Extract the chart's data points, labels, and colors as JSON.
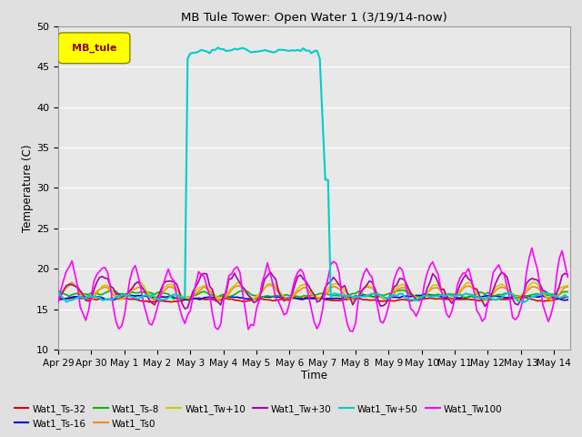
{
  "title": "MB Tule Tower: Open Water 1 (3/19/14-now)",
  "xlabel": "Time",
  "ylabel": "Temperature (C)",
  "ylim": [
    10,
    50
  ],
  "xlim_start": 0,
  "xlim_end": 15.5,
  "xtick_labels": [
    "Apr 29",
    "Apr 30",
    "May 1",
    "May 2",
    "May 3",
    "May 4",
    "May 5",
    "May 6",
    "May 7",
    "May 8",
    "May 9",
    "May 10",
    "May 11",
    "May 12",
    "May 13",
    "May 14"
  ],
  "xtick_positions": [
    0,
    1,
    2,
    3,
    4,
    5,
    6,
    7,
    8,
    9,
    10,
    11,
    12,
    13,
    14,
    15
  ],
  "ytick_positions": [
    10,
    15,
    20,
    25,
    30,
    35,
    40,
    45,
    50
  ],
  "background_color": "#e0e0e0",
  "plot_bg_color": "#e8e8e8",
  "grid_color": "#ffffff",
  "series": [
    {
      "name": "Wat1_Ts-32",
      "color": "#dd0000",
      "lw": 1.2
    },
    {
      "name": "Wat1_Ts-16",
      "color": "#0000dd",
      "lw": 1.2
    },
    {
      "name": "Wat1_Ts-8",
      "color": "#00bb00",
      "lw": 1.2
    },
    {
      "name": "Wat1_Ts0",
      "color": "#ff8800",
      "lw": 1.2
    },
    {
      "name": "Wat1_Tw+10",
      "color": "#cccc00",
      "lw": 1.2
    },
    {
      "name": "Wat1_Tw+30",
      "color": "#aa00aa",
      "lw": 1.2
    },
    {
      "name": "Wat1_Tw+50",
      "color": "#00cccc",
      "lw": 1.5
    },
    {
      "name": "Wat1_Tw100",
      "color": "#ff00ff",
      "lw": 1.2
    }
  ],
  "legend_box_color": "#ffff00",
  "legend_text": "MB_tule",
  "legend_text_color": "#880000",
  "legend_box_edge_color": "#888800"
}
